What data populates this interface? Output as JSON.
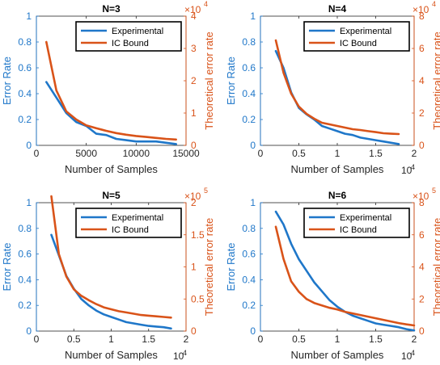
{
  "colors": {
    "experimental": "#1f77c9",
    "bound": "#d95319",
    "axis": "#262626",
    "left_axis": "#1f77c9",
    "right_axis": "#d95319"
  },
  "chart_data": [
    {
      "type": "line",
      "title": "N=3",
      "xlabel": "Number of Samples",
      "ylabel_left": "Error Rate",
      "ylabel_right": "Theoretical error rate",
      "xlim": [
        0,
        15000
      ],
      "xticks": [
        0,
        5000,
        10000,
        15000
      ],
      "xtick_labels": [
        "0",
        "5000",
        "10000",
        "15000"
      ],
      "x_exponent": "",
      "ylim_left": [
        0,
        1
      ],
      "yticks_left": [
        "0",
        "0.2",
        "0.4",
        "0.6",
        "0.8",
        "1"
      ],
      "ylim_right": [
        0,
        4
      ],
      "yticks_right": [
        "0",
        "1",
        "2",
        "3",
        "4"
      ],
      "right_exponent": "×10",
      "right_exponent_power": "4",
      "legend": [
        "Experimental",
        "IC Bound"
      ],
      "legend_loc": "top-right",
      "series": [
        {
          "name": "Experimental",
          "axis": "left",
          "x": [
            1000,
            2000,
            3000,
            4000,
            5000,
            6000,
            7000,
            8000,
            9000,
            10000,
            11000,
            12000,
            13000,
            14000
          ],
          "values": [
            0.49,
            0.37,
            0.25,
            0.18,
            0.15,
            0.09,
            0.08,
            0.05,
            0.04,
            0.03,
            0.03,
            0.03,
            0.02,
            0.01
          ]
        },
        {
          "name": "IC Bound",
          "axis": "right",
          "x": [
            1000,
            2000,
            3000,
            4000,
            5000,
            6000,
            7000,
            8000,
            9000,
            10000,
            11000,
            12000,
            13000,
            14000
          ],
          "values": [
            3.2,
            1.7,
            1.05,
            0.8,
            0.62,
            0.53,
            0.45,
            0.38,
            0.33,
            0.29,
            0.26,
            0.23,
            0.2,
            0.18
          ]
        }
      ]
    },
    {
      "type": "line",
      "title": "N=4",
      "xlabel": "Number of Samples",
      "ylabel_left": "Error Rate",
      "ylabel_right": "Theoretical error rate",
      "xlim": [
        0,
        20000
      ],
      "xticks": [
        0,
        5000,
        10000,
        15000,
        20000
      ],
      "xtick_labels": [
        "0",
        "0.5",
        "1",
        "1.5",
        "2"
      ],
      "x_exponent": "4",
      "ylim_left": [
        0,
        1
      ],
      "yticks_left": [
        "0",
        "0.2",
        "0.4",
        "0.6",
        "0.8",
        "1"
      ],
      "ylim_right": [
        0,
        8
      ],
      "yticks_right": [
        "0",
        "2",
        "4",
        "6",
        "8"
      ],
      "right_exponent": "×10",
      "right_exponent_power": "4",
      "legend": [
        "Experimental",
        "IC Bound"
      ],
      "legend_loc": "top-right",
      "series": [
        {
          "name": "Experimental",
          "axis": "left",
          "x": [
            2000,
            3000,
            4000,
            5000,
            6000,
            7000,
            8000,
            9000,
            10000,
            11000,
            12000,
            13000,
            14000,
            15000,
            16000,
            17000,
            18000
          ],
          "values": [
            0.73,
            0.6,
            0.41,
            0.29,
            0.24,
            0.2,
            0.15,
            0.13,
            0.11,
            0.09,
            0.08,
            0.06,
            0.05,
            0.04,
            0.03,
            0.02,
            0.01
          ]
        },
        {
          "name": "IC Bound",
          "axis": "right",
          "x": [
            2000,
            3000,
            4000,
            5000,
            6000,
            7000,
            8000,
            9000,
            10000,
            11000,
            12000,
            13000,
            14000,
            15000,
            16000,
            17000,
            18000
          ],
          "values": [
            6.5,
            4.5,
            3.2,
            2.4,
            1.95,
            1.65,
            1.4,
            1.3,
            1.2,
            1.1,
            1.0,
            0.95,
            0.88,
            0.82,
            0.75,
            0.72,
            0.7
          ]
        }
      ]
    },
    {
      "type": "line",
      "title": "N=5",
      "xlabel": "Number of Samples",
      "ylabel_left": "Error Rate",
      "ylabel_right": "Theoretical error rate",
      "xlim": [
        0,
        20000
      ],
      "xticks": [
        0,
        5000,
        10000,
        15000,
        20000
      ],
      "xtick_labels": [
        "0",
        "0.5",
        "1",
        "1.5",
        "2"
      ],
      "x_exponent": "4",
      "ylim_left": [
        0,
        1
      ],
      "yticks_left": [
        "0",
        "0.2",
        "0.4",
        "0.6",
        "0.8",
        "1"
      ],
      "ylim_right": [
        0,
        2
      ],
      "yticks_right": [
        "0",
        "0.5",
        "1",
        "1.5",
        "2"
      ],
      "right_exponent": "×10",
      "right_exponent_power": "5",
      "legend": [
        "Experimental",
        "IC Bound"
      ],
      "legend_loc": "top-right",
      "series": [
        {
          "name": "Experimental",
          "axis": "left",
          "x": [
            2000,
            3000,
            4000,
            5000,
            6000,
            7000,
            8000,
            9000,
            10000,
            11000,
            12000,
            13000,
            14000,
            15000,
            16000,
            17000,
            18000
          ],
          "values": [
            0.75,
            0.59,
            0.43,
            0.33,
            0.25,
            0.2,
            0.16,
            0.13,
            0.11,
            0.09,
            0.07,
            0.06,
            0.05,
            0.04,
            0.035,
            0.03,
            0.02
          ]
        },
        {
          "name": "IC Bound",
          "axis": "right",
          "x": [
            2000,
            3000,
            4000,
            5000,
            6000,
            7000,
            8000,
            9000,
            10000,
            11000,
            12000,
            13000,
            14000,
            15000,
            16000,
            17000,
            18000
          ],
          "values": [
            2.1,
            1.2,
            0.85,
            0.65,
            0.55,
            0.48,
            0.42,
            0.37,
            0.34,
            0.31,
            0.29,
            0.27,
            0.25,
            0.24,
            0.23,
            0.22,
            0.21
          ]
        }
      ]
    },
    {
      "type": "line",
      "title": "N=6",
      "xlabel": "Number of Samples",
      "ylabel_left": "Error Rate",
      "ylabel_right": "Theoretical error rate",
      "xlim": [
        0,
        20000
      ],
      "xticks": [
        0,
        5000,
        10000,
        15000,
        20000
      ],
      "xtick_labels": [
        "0",
        "0.5",
        "1",
        "1.5",
        "2"
      ],
      "x_exponent": "4",
      "ylim_left": [
        0,
        1
      ],
      "yticks_left": [
        "0",
        "0.2",
        "0.4",
        "0.6",
        "0.8",
        "1"
      ],
      "ylim_right": [
        0,
        8
      ],
      "yticks_right": [
        "0",
        "2",
        "4",
        "6",
        "8"
      ],
      "right_exponent": "×10",
      "right_exponent_power": "5",
      "legend": [
        "Experimental",
        "IC Bound"
      ],
      "legend_loc": "top-right",
      "series": [
        {
          "name": "Experimental",
          "axis": "left",
          "x": [
            2000,
            3000,
            4000,
            5000,
            6000,
            7000,
            8000,
            9000,
            10000,
            11000,
            12000,
            13000,
            14000,
            15000,
            16000,
            17000,
            18000,
            19000,
            20000
          ],
          "values": [
            0.93,
            0.83,
            0.68,
            0.56,
            0.47,
            0.38,
            0.31,
            0.24,
            0.19,
            0.15,
            0.12,
            0.1,
            0.08,
            0.06,
            0.05,
            0.04,
            0.03,
            0.015,
            0.005
          ]
        },
        {
          "name": "IC Bound",
          "axis": "right",
          "x": [
            2000,
            3000,
            4000,
            5000,
            6000,
            7000,
            8000,
            9000,
            10000,
            11000,
            12000,
            13000,
            14000,
            15000,
            16000,
            17000,
            18000,
            19000,
            20000
          ],
          "values": [
            6.5,
            4.5,
            3.1,
            2.45,
            2.0,
            1.75,
            1.6,
            1.45,
            1.35,
            1.2,
            1.1,
            1.0,
            0.9,
            0.8,
            0.7,
            0.6,
            0.5,
            0.42,
            0.35
          ]
        }
      ]
    }
  ]
}
